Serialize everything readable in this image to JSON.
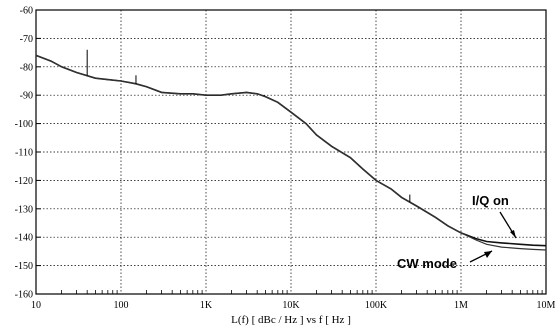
{
  "chart_data": {
    "type": "line",
    "title": "",
    "xlabel": "L(f)  [ dBc / Hz ]  vs  f  [ Hz ]",
    "ylabel": "",
    "x_scale": "log",
    "xlim": [
      10,
      10000000
    ],
    "ylim": [
      -160,
      -60
    ],
    "grid": true,
    "x_tick_labels": [
      "10",
      "100",
      "1K",
      "10K",
      "100K",
      "1M",
      "10M"
    ],
    "y_tick_labels": [
      "-60",
      "-70",
      "-80",
      "-90",
      "-100",
      "-110",
      "-120",
      "-130",
      "-140",
      "-150",
      "-160"
    ],
    "series": [
      {
        "name": "I/Q on",
        "x": [
          10,
          15,
          20,
          30,
          50,
          70,
          100,
          150,
          200,
          300,
          500,
          700,
          1000,
          1500,
          2000,
          3000,
          4000,
          5000,
          7000,
          10000,
          15000,
          20000,
          30000,
          50000,
          70000,
          100000,
          150000,
          200000,
          300000,
          500000,
          700000,
          1000000,
          1500000,
          2000000,
          3000000,
          5000000,
          7000000,
          10000000
        ],
        "y": [
          -76,
          -78,
          -80,
          -82,
          -84,
          -84.5,
          -85,
          -86,
          -87,
          -89,
          -89.5,
          -89.5,
          -90,
          -90,
          -89.5,
          -89,
          -89.5,
          -90.5,
          -92.5,
          -96,
          -100,
          -104,
          -108,
          -112,
          -116,
          -120,
          -123,
          -126,
          -129,
          -133,
          -136,
          -138.5,
          -140.5,
          -141.5,
          -142,
          -142.5,
          -142.8,
          -143
        ]
      },
      {
        "name": "CW mode",
        "x": [
          10,
          15,
          20,
          30,
          50,
          70,
          100,
          150,
          200,
          300,
          500,
          700,
          1000,
          1500,
          2000,
          3000,
          4000,
          5000,
          7000,
          10000,
          15000,
          20000,
          30000,
          50000,
          70000,
          100000,
          150000,
          200000,
          300000,
          500000,
          700000,
          1000000,
          1500000,
          2000000,
          3000000,
          5000000,
          7000000,
          10000000
        ],
        "y": [
          -76,
          -78,
          -80,
          -82,
          -84,
          -84.5,
          -85,
          -86,
          -87,
          -89,
          -89.5,
          -89.5,
          -90,
          -90,
          -89.5,
          -89,
          -89.5,
          -90.5,
          -92.5,
          -96,
          -100,
          -104,
          -108,
          -112,
          -116,
          -120,
          -123,
          -126,
          -129,
          -133,
          -136,
          -138.5,
          -141,
          -142.5,
          -143.5,
          -144,
          -144.3,
          -144.5
        ]
      }
    ],
    "annotations": [
      "I/Q on",
      "CW mode"
    ],
    "spurs": [
      {
        "x": 40,
        "y": -74
      },
      {
        "x": 150,
        "y": -83
      },
      {
        "x": 250000,
        "y": -125
      }
    ]
  }
}
